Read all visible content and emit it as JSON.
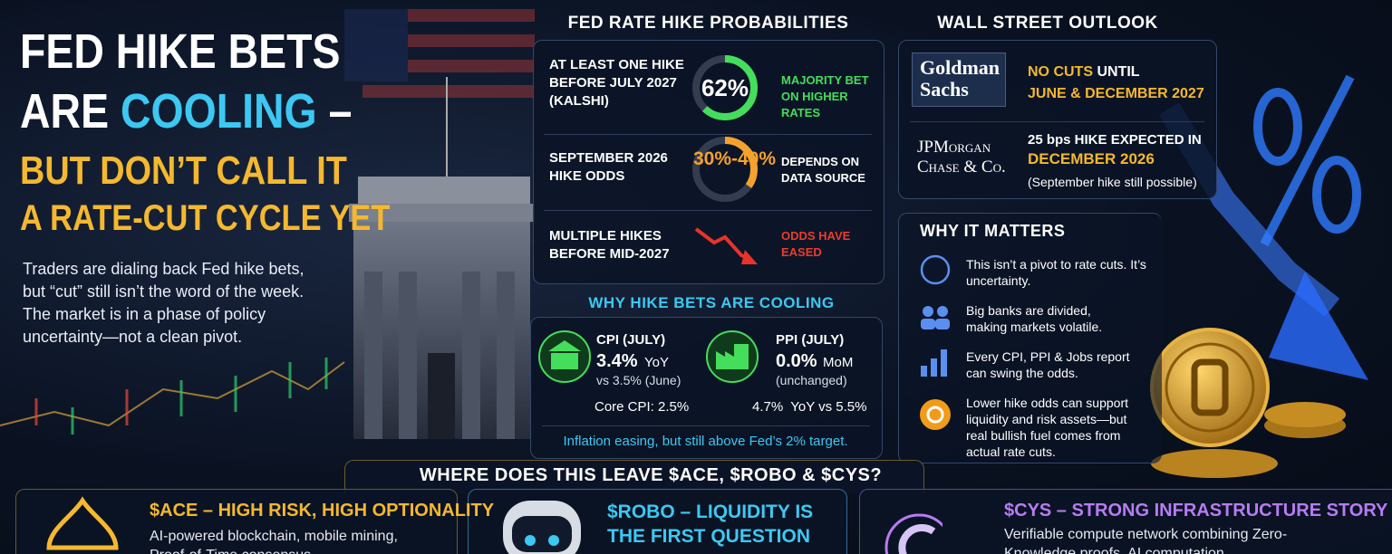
{
  "title": {
    "line1": "FED HIKE BETS",
    "line2a": "ARE",
    "line2b": "COOLING",
    "line2c": "–",
    "line3": "BUT DON’T CALL IT",
    "line4": "A RATE-CUT CYCLE YET"
  },
  "intro": "Traders are dialing back Fed hike bets, but “cut” still isn’t the word of the week. The market is in a phase of policy uncertainty—not a clean pivot.",
  "probabilities": {
    "heading": "FED RATE HIKE PROBABILITIES",
    "rows": [
      {
        "label": "AT LEAST ONE HIKE BEFORE JULY 2027 (KALSHI)",
        "value": "62%",
        "note": "MAJORITY BET ON HIGHER RATES"
      },
      {
        "label": "SEPTEMBER 2026 HIKE ODDS",
        "value": "30%-40%",
        "note": "DEPENDS ON DATA SOURCE"
      },
      {
        "label": "MULTIPLE HIKES BEFORE MID-2027",
        "note": "ODDS HAVE EASED"
      }
    ]
  },
  "cooling": {
    "heading": "WHY HIKE BETS ARE COOLING",
    "cpi": {
      "title": "CPI (JULY)",
      "value": "3.4%",
      "unit": "YoY",
      "compare": "vs 3.5% (June)",
      "core": "Core CPI: 2.5%"
    },
    "ppi": {
      "title": "PPI (JULY)",
      "value": "0.0%",
      "unit": "MoM",
      "compare": "(unchanged)",
      "yoy": "4.7%  YoY vs 5.5%"
    },
    "footer": "Inflation easing, but still above Fed’s 2% target."
  },
  "outlook": {
    "heading": "WALL STREET OUTLOOK",
    "goldman": {
      "logo": "Goldman Sachs",
      "a": "NO CUTS",
      "b": "UNTIL",
      "c": "JUNE & DECEMBER 2027"
    },
    "jpm": {
      "logo": "JPMorgan Chase & Co.",
      "a": "25 bps HIKE EXPECTED IN",
      "b": "DECEMBER 2026",
      "c": "(September hike still possible)"
    }
  },
  "matters": {
    "heading": "WHY IT MATTERS",
    "items": [
      "This isn’t a pivot to rate cuts. It’s uncertainty.",
      "Big banks are divided, making markets volatile.",
      "Every CPI, PPI & Jobs report can swing the odds.",
      "Lower hike odds can support liquidity and risk assets—but real bullish fuel comes from actual rate cuts."
    ]
  },
  "bottom": {
    "heading": "WHERE DOES THIS LEAVE $ACE, $ROBO & $CYS?",
    "cards": [
      {
        "title": "$ACE – HIGH RISK, HIGH OPTIONALITY",
        "text": "AI-powered blockchain, mobile mining, Proof-of-Time consensus"
      },
      {
        "title": "$ROBO – LIQUIDITY IS THE FIRST QUESTION"
      },
      {
        "title": "$CYS – STRONG INFRASTRUCTURE STORY",
        "text": "Verifiable compute network combining Zero-Knowledge proofs, AI computation"
      }
    ]
  }
}
